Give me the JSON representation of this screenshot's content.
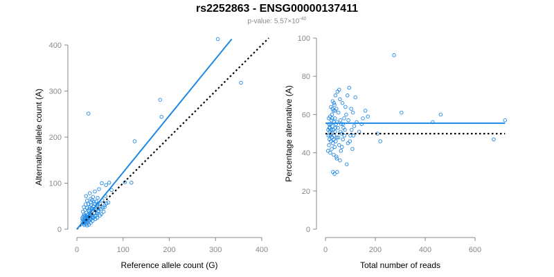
{
  "title": "rs2252863 - ENSG00000137411",
  "subtitle": {
    "prefix": "p-value: 5.57×10",
    "exponent": "-40"
  },
  "colors": {
    "points": "#1e88e5",
    "fit": "#1e88e5",
    "reference": "#000000",
    "axis": "#888888",
    "tick_label": "#888888"
  },
  "chart_data": [
    {
      "type": "scatter",
      "title": "",
      "xlabel": "Reference allele count (G)",
      "ylabel": "Alternative allele count (A)",
      "xlim": [
        0,
        400
      ],
      "ylim": [
        0,
        400
      ],
      "xticks": [
        0,
        100,
        200,
        300,
        400
      ],
      "yticks": [
        0,
        100,
        200,
        300,
        400
      ],
      "grid": false,
      "fit_line": {
        "x": [
          0,
          335
        ],
        "y": [
          0,
          413
        ]
      },
      "reference_line": {
        "x": [
          0,
          415
        ],
        "y": [
          0,
          415
        ]
      },
      "points": [
        [
          305,
          413
        ],
        [
          355,
          318
        ],
        [
          180,
          281
        ],
        [
          183,
          244
        ],
        [
          25,
          251
        ],
        [
          125,
          191
        ],
        [
          104,
          102
        ],
        [
          118,
          101
        ],
        [
          70,
          101
        ],
        [
          63,
          96
        ],
        [
          48,
          87
        ],
        [
          39,
          82
        ],
        [
          28,
          78
        ],
        [
          20,
          72
        ],
        [
          35,
          70
        ],
        [
          45,
          68
        ],
        [
          55,
          63
        ],
        [
          33,
          63
        ],
        [
          42,
          60
        ],
        [
          38,
          55
        ],
        [
          30,
          58
        ],
        [
          25,
          55
        ],
        [
          50,
          55
        ],
        [
          44,
          52
        ],
        [
          60,
          52
        ],
        [
          36,
          50
        ],
        [
          28,
          48
        ],
        [
          22,
          46
        ],
        [
          40,
          45
        ],
        [
          52,
          44
        ],
        [
          32,
          44
        ],
        [
          18,
          42
        ],
        [
          26,
          40
        ],
        [
          34,
          40
        ],
        [
          46,
          38
        ],
        [
          58,
          38
        ],
        [
          20,
          36
        ],
        [
          28,
          35
        ],
        [
          38,
          35
        ],
        [
          16,
          32
        ],
        [
          24,
          32
        ],
        [
          32,
          30
        ],
        [
          42,
          30
        ],
        [
          50,
          30
        ],
        [
          14,
          28
        ],
        [
          20,
          28
        ],
        [
          28,
          27
        ],
        [
          36,
          26
        ],
        [
          12,
          25
        ],
        [
          18,
          24
        ],
        [
          24,
          23
        ],
        [
          30,
          22
        ],
        [
          40,
          22
        ],
        [
          14,
          20
        ],
        [
          20,
          20
        ],
        [
          26,
          18
        ],
        [
          34,
          18
        ],
        [
          12,
          16
        ],
        [
          18,
          15
        ],
        [
          24,
          14
        ],
        [
          30,
          14
        ],
        [
          14,
          12
        ],
        [
          20,
          11
        ],
        [
          26,
          10
        ],
        [
          16,
          9
        ],
        [
          22,
          8
        ],
        [
          12,
          22
        ],
        [
          17,
          19
        ],
        [
          22,
          17
        ],
        [
          15,
          14
        ],
        [
          28,
          24
        ],
        [
          35,
          24
        ],
        [
          44,
          25
        ],
        [
          48,
          46
        ],
        [
          56,
          47
        ],
        [
          64,
          56
        ],
        [
          60,
          48
        ],
        [
          68,
          58
        ],
        [
          75,
          85
        ],
        [
          62,
          72
        ],
        [
          54,
          100
        ],
        [
          30,
          66
        ],
        [
          22,
          62
        ],
        [
          19,
          54
        ],
        [
          15,
          48
        ],
        [
          27,
          44
        ],
        [
          13,
          38
        ],
        [
          43,
          35
        ],
        [
          31,
          52
        ],
        [
          37,
          60
        ],
        [
          25,
          25
        ],
        [
          29,
          31
        ],
        [
          21,
          26
        ],
        [
          17,
          29
        ],
        [
          23,
          21
        ],
        [
          33,
          27
        ],
        [
          39,
          29
        ],
        [
          47,
          40
        ],
        [
          53,
          33
        ],
        [
          41,
          42
        ],
        [
          45,
          55
        ],
        [
          36,
          44
        ]
      ]
    },
    {
      "type": "scatter",
      "title": "",
      "xlabel": "Total number of reads",
      "ylabel": "Percentage alternative (A)",
      "xlim": [
        0,
        700
      ],
      "ylim": [
        0,
        100
      ],
      "xticks": [
        0,
        200,
        400,
        600
      ],
      "yticks": [
        0,
        20,
        40,
        60,
        80,
        100
      ],
      "grid": false,
      "fit_line": {
        "x": [
          0,
          720
        ],
        "y": [
          55.5,
          55.5
        ]
      },
      "reference_line": {
        "x": [
          0,
          720
        ],
        "y": [
          50,
          50
        ]
      },
      "points": [
        [
          275,
          91
        ],
        [
          720,
          57
        ],
        [
          462,
          60
        ],
        [
          305,
          61
        ],
        [
          430,
          56
        ],
        [
          675,
          47
        ],
        [
          208,
          50
        ],
        [
          220,
          46
        ],
        [
          170,
          59
        ],
        [
          160,
          62
        ],
        [
          145,
          55
        ],
        [
          120,
          69
        ],
        [
          115,
          54
        ],
        [
          110,
          61
        ],
        [
          105,
          52
        ],
        [
          100,
          49
        ],
        [
          95,
          74
        ],
        [
          90,
          45
        ],
        [
          85,
          34
        ],
        [
          88,
          70
        ],
        [
          80,
          64
        ],
        [
          75,
          58
        ],
        [
          72,
          53
        ],
        [
          70,
          47
        ],
        [
          68,
          66
        ],
        [
          65,
          50
        ],
        [
          62,
          41
        ],
        [
          60,
          57
        ],
        [
          58,
          68
        ],
        [
          55,
          44
        ],
        [
          52,
          61
        ],
        [
          50,
          53
        ],
        [
          48,
          72
        ],
        [
          46,
          48
        ],
        [
          45,
          37
        ],
        [
          44,
          63
        ],
        [
          42,
          55
        ],
        [
          41,
          46
        ],
        [
          40,
          70
        ],
        [
          39,
          51
        ],
        [
          38,
          58
        ],
        [
          37,
          43
        ],
        [
          36,
          65
        ],
        [
          35,
          49
        ],
        [
          34,
          56
        ],
        [
          33,
          39
        ],
        [
          32,
          62
        ],
        [
          31,
          52
        ],
        [
          30,
          45
        ],
        [
          29,
          67
        ],
        [
          28,
          54
        ],
        [
          27,
          48
        ],
        [
          26,
          60
        ],
        [
          25,
          42
        ],
        [
          24,
          57
        ],
        [
          23,
          50
        ],
        [
          22,
          64
        ],
        [
          21,
          46
        ],
        [
          20,
          55
        ],
        [
          19,
          40
        ],
        [
          18,
          59
        ],
        [
          17,
          51
        ],
        [
          16,
          47
        ],
        [
          15,
          53
        ],
        [
          14,
          44
        ],
        [
          13,
          58
        ],
        [
          12,
          49
        ],
        [
          11,
          52
        ],
        [
          10,
          41
        ],
        [
          30,
          30
        ],
        [
          36,
          29
        ],
        [
          47,
          30
        ],
        [
          55,
          73
        ],
        [
          63,
          55
        ],
        [
          78,
          52
        ],
        [
          83,
          60
        ],
        [
          92,
          57
        ],
        [
          98,
          46
        ],
        [
          103,
          63
        ],
        [
          112,
          49
        ],
        [
          125,
          56
        ],
        [
          135,
          51
        ],
        [
          150,
          58
        ],
        [
          108,
          42
        ],
        [
          66,
          43
        ],
        [
          58,
          36
        ],
        [
          44,
          38
        ],
        [
          38,
          62
        ],
        [
          34,
          66
        ],
        [
          28,
          63
        ],
        [
          24,
          52
        ],
        [
          20,
          49
        ],
        [
          18,
          53
        ],
        [
          14,
          55
        ],
        [
          27,
          58
        ],
        [
          33,
          47
        ],
        [
          40,
          53
        ],
        [
          46,
          56
        ],
        [
          52,
          48
        ],
        [
          60,
          51
        ],
        [
          70,
          55
        ],
        [
          76,
          49
        ]
      ]
    }
  ]
}
